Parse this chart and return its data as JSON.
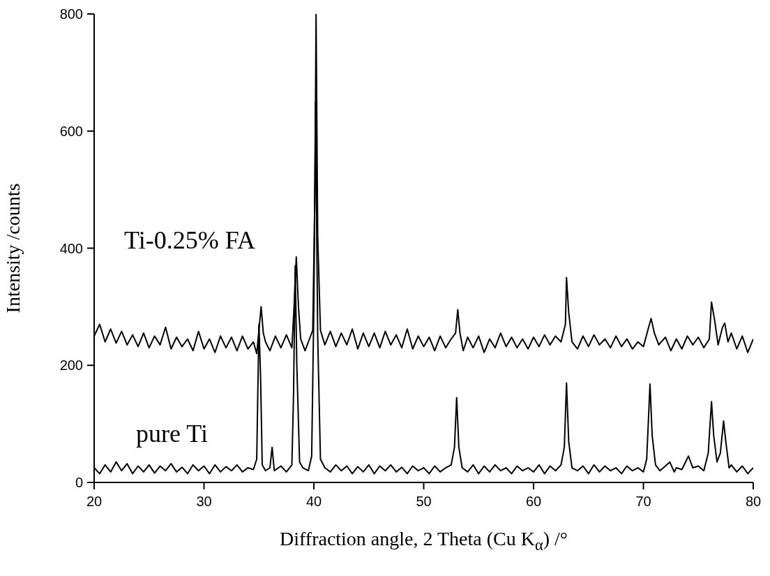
{
  "chart_data": {
    "type": "line",
    "xlabel": "Diffraction angle, 2 Theta (Cu K$_{α}$) /°",
    "ylabel": "Intensity /counts",
    "xlim": [
      20,
      80
    ],
    "xticks": [
      20,
      30,
      40,
      50,
      60,
      70,
      80
    ],
    "ylim": [
      0,
      800
    ],
    "yticks": [
      0,
      200,
      400,
      600,
      800
    ],
    "series": [
      {
        "name": "Ti-0.25% FA",
        "color": "#000000",
        "x": [
          20,
          20.5,
          21,
          21.5,
          22,
          22.5,
          23,
          23.5,
          24,
          24.5,
          25,
          25.5,
          26,
          26.5,
          27,
          27.5,
          28,
          28.5,
          29,
          29.5,
          30,
          30.5,
          31,
          31.5,
          32,
          32.5,
          33,
          33.5,
          34,
          34.5,
          34.8,
          35.0,
          35.2,
          35.4,
          35.6,
          36,
          36.5,
          37,
          37.5,
          38,
          38.2,
          38.4,
          38.6,
          38.8,
          39.2,
          39.6,
          39.9,
          40.1,
          40.2,
          40.35,
          40.6,
          41,
          41.5,
          42,
          42.5,
          43,
          43.5,
          44,
          44.5,
          45,
          45.5,
          46,
          46.5,
          47,
          47.5,
          48,
          48.5,
          49,
          49.5,
          50,
          50.5,
          51,
          51.5,
          52,
          52.5,
          52.9,
          53.1,
          53.3,
          53.6,
          54,
          54.5,
          55,
          55.5,
          56,
          56.5,
          57,
          57.5,
          58,
          58.5,
          59,
          59.5,
          60,
          60.5,
          61,
          61.5,
          62,
          62.5,
          62.9,
          63.0,
          63.2,
          63.5,
          64,
          64.5,
          65,
          65.5,
          66,
          66.5,
          67,
          67.5,
          68,
          68.5,
          69,
          69.5,
          70,
          70.4,
          70.7,
          71,
          71.4,
          72,
          72.5,
          73,
          73.5,
          74,
          74.5,
          75,
          75.5,
          76,
          76.2,
          76.5,
          76.8,
          77.2,
          77.4,
          77.7,
          78,
          78.5,
          79,
          79.5,
          80
        ],
        "values": [
          250,
          270,
          240,
          262,
          238,
          258,
          235,
          252,
          232,
          255,
          230,
          250,
          235,
          265,
          228,
          248,
          232,
          245,
          225,
          258,
          228,
          245,
          222,
          250,
          230,
          248,
          225,
          250,
          228,
          240,
          220,
          260,
          300,
          255,
          240,
          225,
          250,
          230,
          252,
          230,
          300,
          385,
          300,
          245,
          225,
          245,
          260,
          500,
          800,
          420,
          260,
          235,
          258,
          232,
          255,
          235,
          262,
          228,
          255,
          232,
          255,
          230,
          258,
          235,
          252,
          230,
          262,
          228,
          250,
          232,
          248,
          225,
          250,
          230,
          245,
          255,
          295,
          255,
          225,
          248,
          230,
          250,
          222,
          245,
          230,
          255,
          232,
          248,
          230,
          245,
          228,
          248,
          232,
          252,
          235,
          250,
          240,
          270,
          350,
          290,
          240,
          228,
          250,
          232,
          252,
          235,
          245,
          230,
          250,
          232,
          245,
          228,
          240,
          232,
          260,
          280,
          255,
          235,
          248,
          225,
          245,
          228,
          250,
          235,
          248,
          230,
          245,
          308,
          275,
          235,
          265,
          272,
          240,
          255,
          228,
          250,
          222,
          245
        ]
      },
      {
        "name": "pure Ti",
        "color": "#000000",
        "x": [
          20,
          20.5,
          21,
          21.5,
          22,
          22.5,
          23,
          23.5,
          24,
          24.5,
          25,
          25.5,
          26,
          26.5,
          27,
          27.5,
          28,
          28.5,
          29,
          29.5,
          30,
          30.5,
          31,
          31.5,
          32,
          32.5,
          33,
          33.5,
          34,
          34.5,
          34.8,
          35.0,
          35.15,
          35.3,
          35.6,
          36,
          36.2,
          36.4,
          37,
          37.5,
          38,
          38.15,
          38.3,
          38.45,
          38.7,
          39,
          39.5,
          39.8,
          40.0,
          40.15,
          40.35,
          40.6,
          41,
          41.5,
          42,
          42.5,
          43,
          43.5,
          44,
          44.5,
          45,
          45.5,
          46,
          46.5,
          47,
          47.5,
          48,
          48.5,
          49,
          49.5,
          50,
          50.5,
          51,
          51.5,
          52,
          52.5,
          52.8,
          53.0,
          53.2,
          53.5,
          54,
          54.5,
          55,
          55.5,
          56,
          56.5,
          57,
          57.5,
          58,
          58.5,
          59,
          59.5,
          60,
          60.5,
          61,
          61.5,
          62,
          62.5,
          62.8,
          63.0,
          63.2,
          63.5,
          64,
          64.5,
          65,
          65.5,
          66,
          66.5,
          67,
          67.5,
          68,
          68.5,
          69,
          69.5,
          70,
          70.3,
          70.6,
          70.8,
          71.1,
          71.5,
          72,
          72.4,
          72.8,
          73,
          73.5,
          74.1,
          74.5,
          75,
          75.5,
          75.9,
          76.2,
          76.4,
          76.7,
          77.0,
          77.3,
          77.5,
          77.8,
          78,
          78.5,
          79,
          79.5,
          80
        ],
        "values": [
          25,
          15,
          30,
          18,
          35,
          20,
          32,
          15,
          28,
          18,
          30,
          16,
          28,
          20,
          32,
          18,
          26,
          15,
          30,
          20,
          28,
          15,
          30,
          18,
          27,
          20,
          30,
          18,
          25,
          22,
          40,
          270,
          180,
          30,
          20,
          25,
          60,
          20,
          28,
          18,
          30,
          150,
          370,
          200,
          35,
          25,
          20,
          45,
          300,
          650,
          250,
          40,
          25,
          18,
          30,
          20,
          28,
          15,
          27,
          18,
          30,
          15,
          28,
          20,
          30,
          18,
          26,
          15,
          28,
          20,
          25,
          15,
          28,
          18,
          25,
          30,
          60,
          145,
          60,
          25,
          18,
          30,
          15,
          28,
          18,
          30,
          20,
          25,
          15,
          28,
          20,
          25,
          18,
          30,
          15,
          28,
          20,
          30,
          60,
          170,
          70,
          25,
          20,
          28,
          15,
          30,
          18,
          28,
          20,
          25,
          15,
          28,
          20,
          25,
          18,
          40,
          168,
          80,
          30,
          20,
          28,
          35,
          18,
          25,
          22,
          45,
          25,
          28,
          20,
          50,
          138,
          80,
          35,
          50,
          105,
          70,
          25,
          30,
          18,
          28,
          15,
          25
        ]
      }
    ]
  }
}
